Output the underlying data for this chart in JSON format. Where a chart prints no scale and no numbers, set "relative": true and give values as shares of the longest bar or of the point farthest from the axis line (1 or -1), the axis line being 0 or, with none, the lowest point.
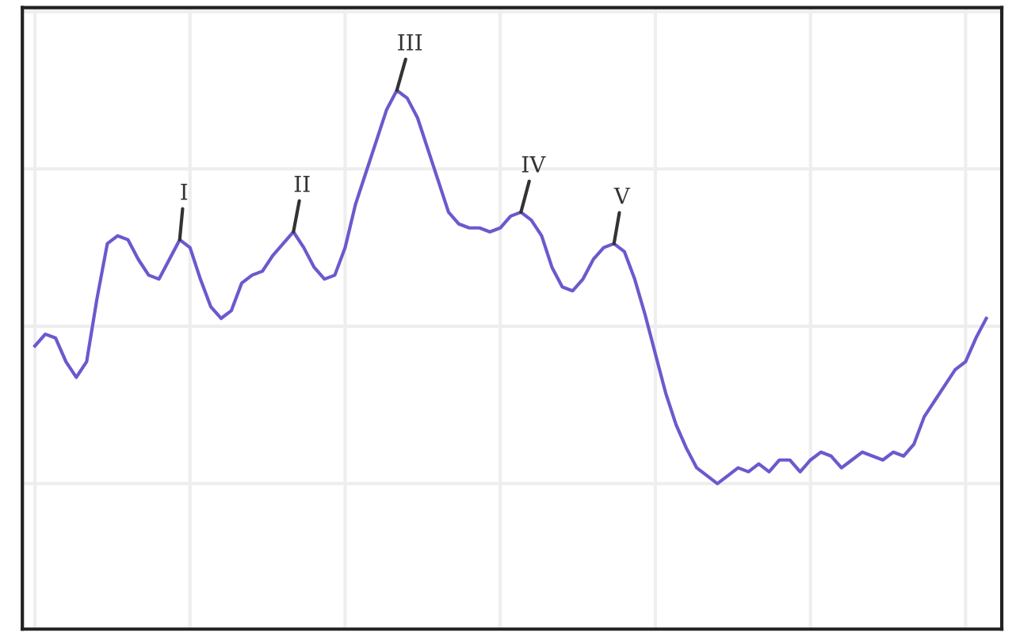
{
  "chart_data": {
    "type": "line",
    "relative": true,
    "grid": true,
    "color": "#6a5acd",
    "categories": [
      null,
      null,
      null,
      null,
      null,
      null,
      null,
      null,
      null,
      null,
      null,
      null,
      null,
      null,
      null,
      null,
      null,
      null,
      null,
      null,
      null,
      null,
      null,
      null,
      null,
      null,
      null,
      null,
      null,
      null,
      null,
      null,
      null,
      null,
      null,
      null,
      null,
      null,
      null,
      null,
      null,
      null,
      null,
      null,
      null,
      null,
      null,
      null,
      null,
      null,
      null,
      null,
      null,
      null,
      null,
      null,
      null,
      null,
      null,
      null,
      null,
      null,
      null,
      null,
      null,
      null,
      null,
      null,
      null,
      null,
      null,
      null,
      null,
      null,
      null,
      null,
      null,
      null,
      null,
      null,
      null,
      null,
      null,
      null,
      null,
      null,
      null,
      null,
      null,
      null,
      null,
      null,
      null
    ],
    "values": [
      0.35,
      0.38,
      0.37,
      0.31,
      0.27,
      0.31,
      0.47,
      0.61,
      0.63,
      0.62,
      0.57,
      0.53,
      0.52,
      0.57,
      0.62,
      0.6,
      0.52,
      0.45,
      0.42,
      0.44,
      0.51,
      0.53,
      0.54,
      0.58,
      0.61,
      0.64,
      0.6,
      0.55,
      0.52,
      0.53,
      0.6,
      0.71,
      0.79,
      0.87,
      0.95,
      1,
      0.98,
      0.93,
      0.85,
      0.77,
      0.69,
      0.66,
      0.65,
      0.65,
      0.64,
      0.65,
      0.68,
      0.69,
      0.67,
      0.63,
      0.55,
      0.5,
      0.49,
      0.52,
      0.57,
      0.6,
      0.61,
      0.59,
      0.52,
      0.43,
      0.33,
      0.23,
      0.15,
      0.09,
      0.04,
      0.02,
      0,
      0.02,
      0.04,
      0.03,
      0.05,
      0.03,
      0.06,
      0.06,
      0.03,
      0.06,
      0.08,
      0.07,
      0.04,
      0.06,
      0.08,
      0.07,
      0.06,
      0.08,
      0.07,
      0.1,
      0.17,
      0.21,
      0.25,
      0.29,
      0.31,
      0.37,
      0.42
    ],
    "annotations": [
      {
        "text": "I",
        "y": 0.62
      },
      {
        "text": "II",
        "y": 0.64
      },
      {
        "text": "III",
        "y": 1
      },
      {
        "text": "IV",
        "y": 0.69
      },
      {
        "text": "V",
        "y": 0.61
      }
    ]
  }
}
